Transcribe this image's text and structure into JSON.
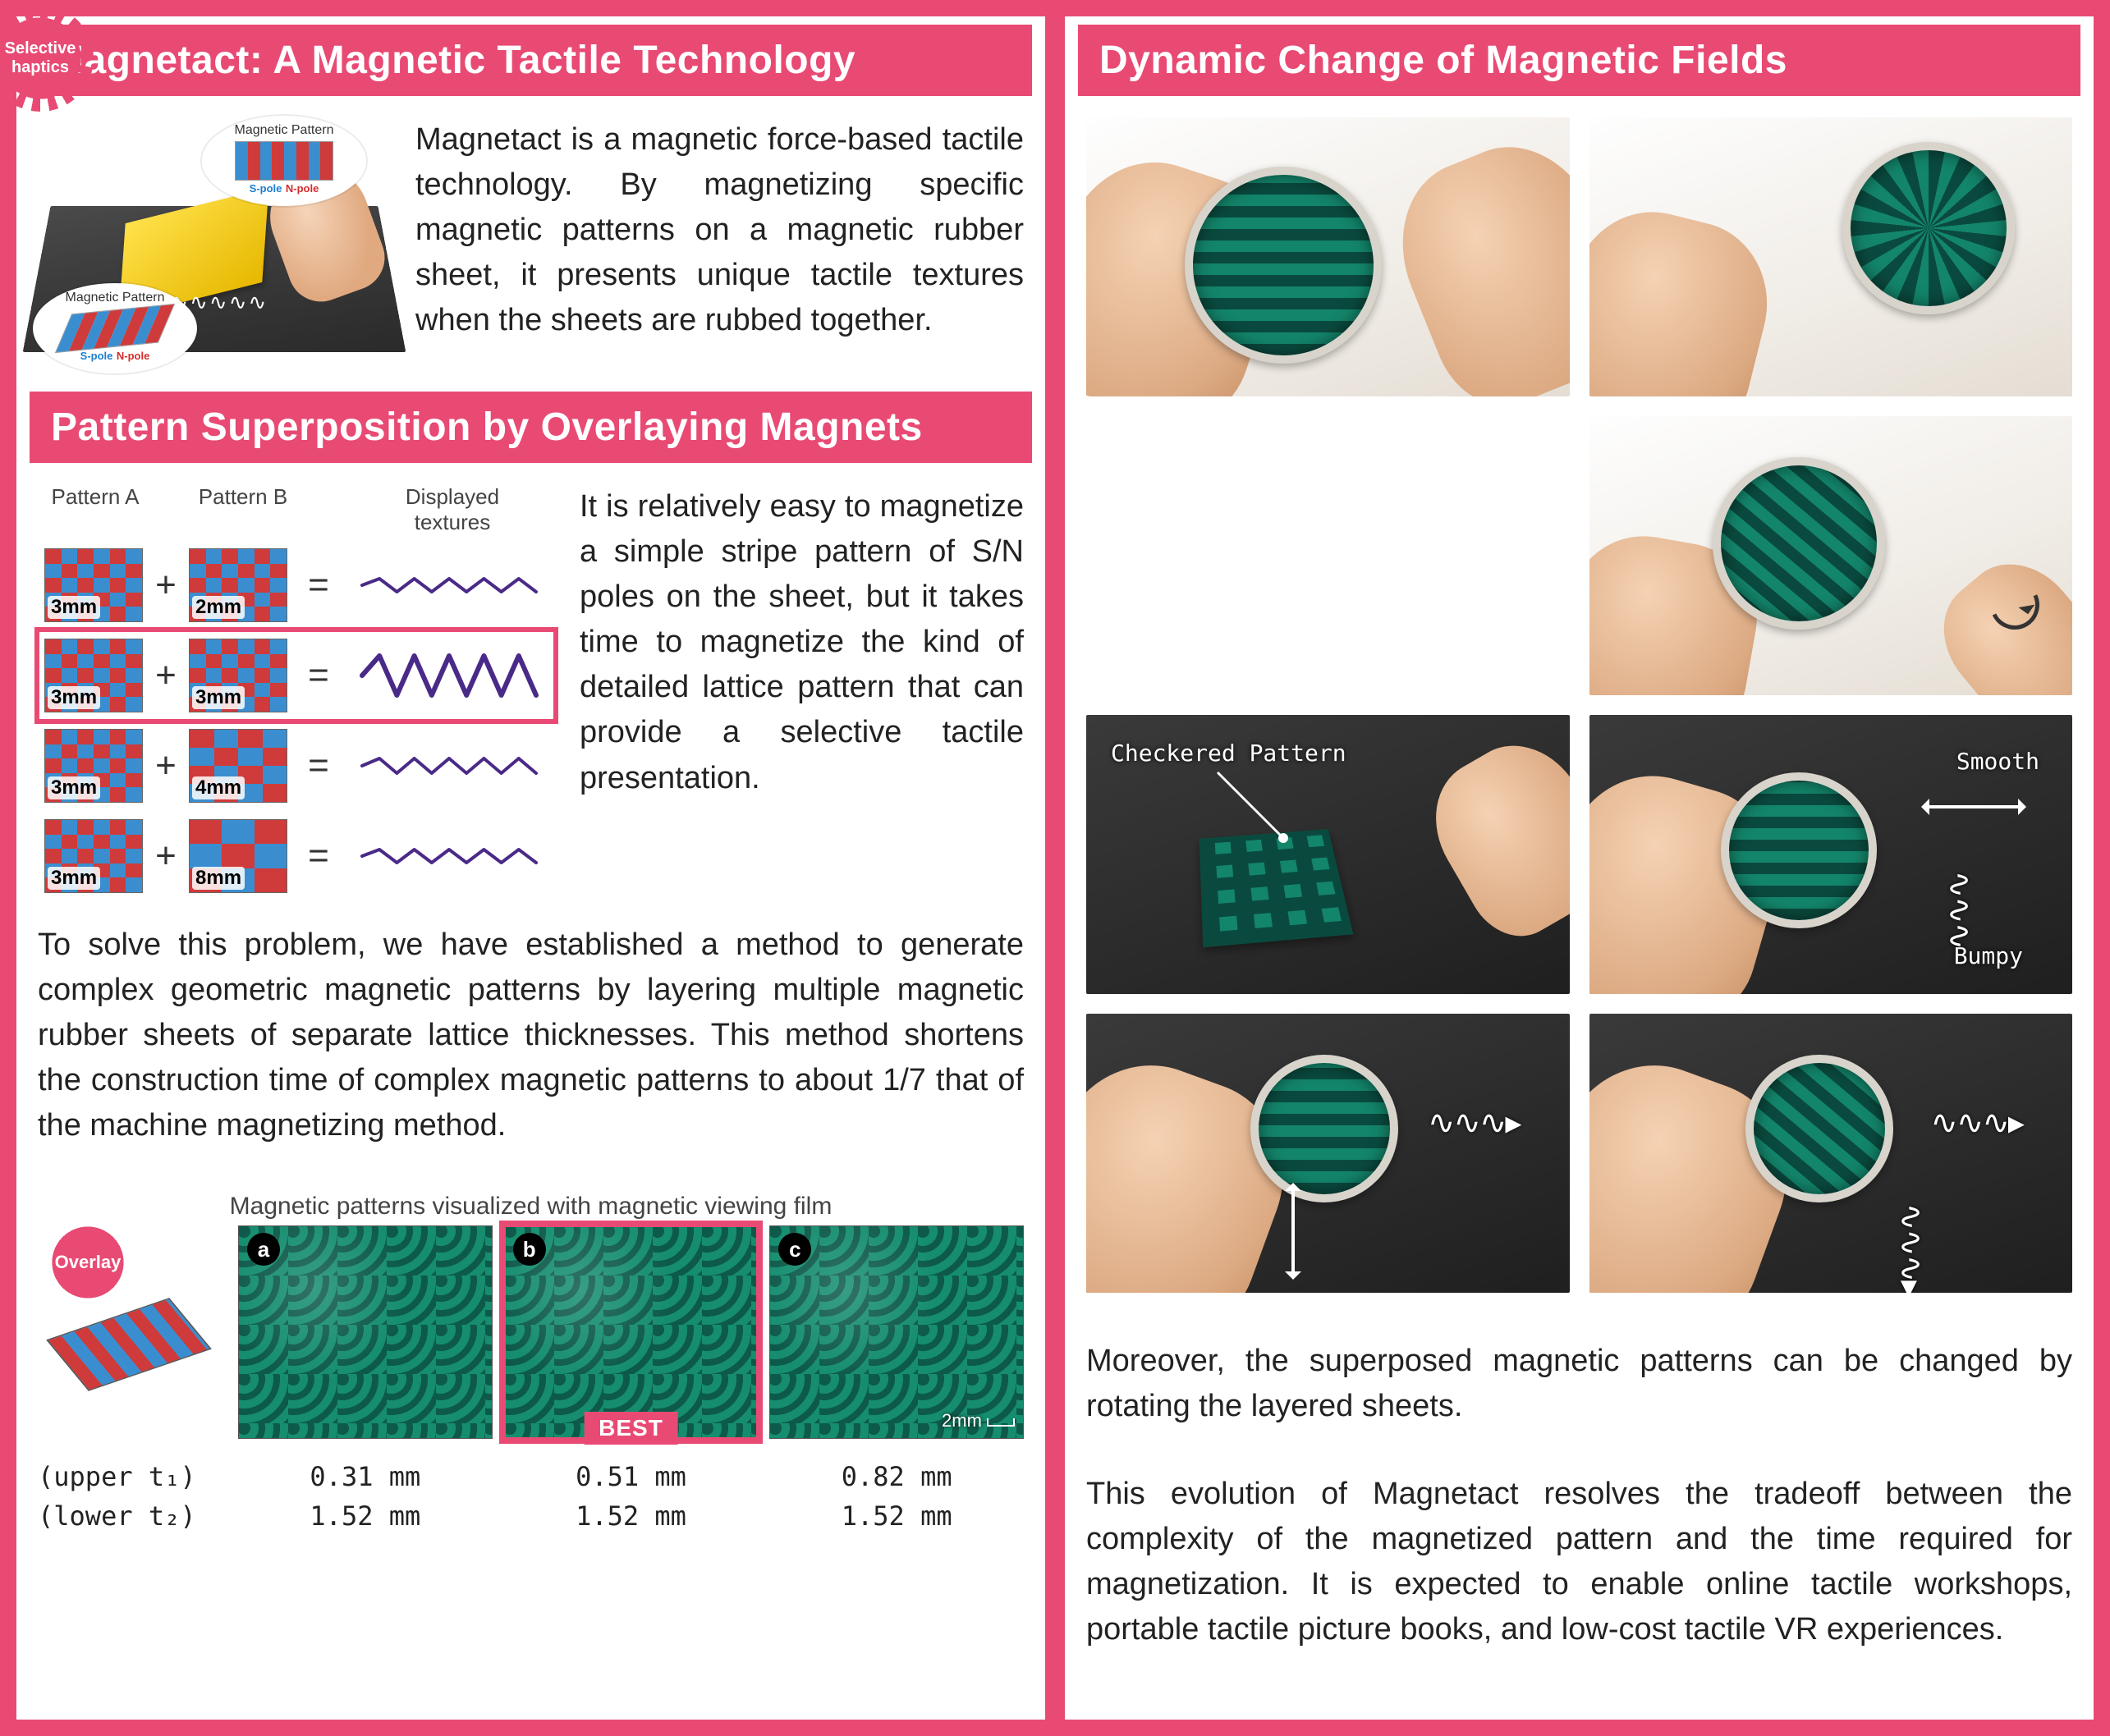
{
  "colors": {
    "accent": "#e84a74",
    "text": "#222222",
    "s_pole": "#1d7ecf",
    "n_pole": "#d42c2c",
    "lattice_red": "#cf3a3a",
    "lattice_blue": "#3a8ecf",
    "film_dark": "#0d5a4a",
    "film_light": "#158d6e",
    "texture_line": "#4a2a88"
  },
  "left": {
    "title1": "Magnetact: A Magnetic Tactile Technology",
    "intro_fig": {
      "callout_label": "Magnetic Pattern",
      "s_pole": "S-pole",
      "n_pole": "N-pole"
    },
    "intro_text": "Magnetact is a magnetic force-based tactile technology. By magnetizing specific magnetic patterns on a magnetic rubber sheet, it presents unique tactile textures when the sheets are rubbed together.",
    "title2": "Pattern Superposition by Overlaying Magnets",
    "superpos": {
      "header_A": "Pattern A",
      "header_B": "Pattern B",
      "header_tex": "Displayed\ntextures",
      "burst": "Selective\nhaptics",
      "rows": [
        {
          "a_mm": "3mm",
          "b_mm": "2mm",
          "highlight": false,
          "amp": 8
        },
        {
          "a_mm": "3mm",
          "b_mm": "3mm",
          "highlight": true,
          "amp": 24
        },
        {
          "a_mm": "3mm",
          "b_mm": "4mm",
          "highlight": false,
          "amp": 9
        },
        {
          "a_mm": "3mm",
          "b_mm": "8mm",
          "highlight": false,
          "amp": 8
        }
      ]
    },
    "sp_text": "It is relatively easy to magnetize a simple stripe pattern of S/N poles on the sheet, but it takes time to magnetize the kind of detailed lattice pattern that can provide a selective tactile presentation.",
    "solve_text": "To solve this problem, we have established a method to generate complex geometric magnetic patterns by layering multiple magnetic rubber sheets of separate lattice thicknesses. This method shortens the construction time of complex magnetic patterns to about 1/7 that of the machine magnetizing method.",
    "vf_caption": "Magnetic patterns visualized with magnetic viewing film",
    "overlay_burst": "Overlay",
    "panels": [
      {
        "tag": "a",
        "best": false,
        "upper": "0.31 mm",
        "lower": "1.52 mm"
      },
      {
        "tag": "b",
        "best": true,
        "upper": "0.51 mm",
        "lower": "1.52 mm"
      },
      {
        "tag": "c",
        "best": false,
        "upper": "0.82 mm",
        "lower": "1.52 mm"
      }
    ],
    "scale_label": "2mm",
    "best_label": "BEST",
    "row_label_upper": "(upper t₁)",
    "row_label_lower": "(lower t₂)"
  },
  "right": {
    "title": "Dynamic Change of Magnetic Fields",
    "annot_checkered": "Checkered Pattern",
    "annot_smooth": "Smooth",
    "annot_bumpy": "Bumpy",
    "para1": "Moreover, the superposed magnetic patterns can be changed by rotating the layered sheets.",
    "para2": "This evolution of Magnetact resolves the tradeoff between the complexity of the magnetized pattern and the time required for magnetization. It is expected to enable online tactile workshops, portable tactile picture books, and low-cost tactile VR experiences."
  }
}
